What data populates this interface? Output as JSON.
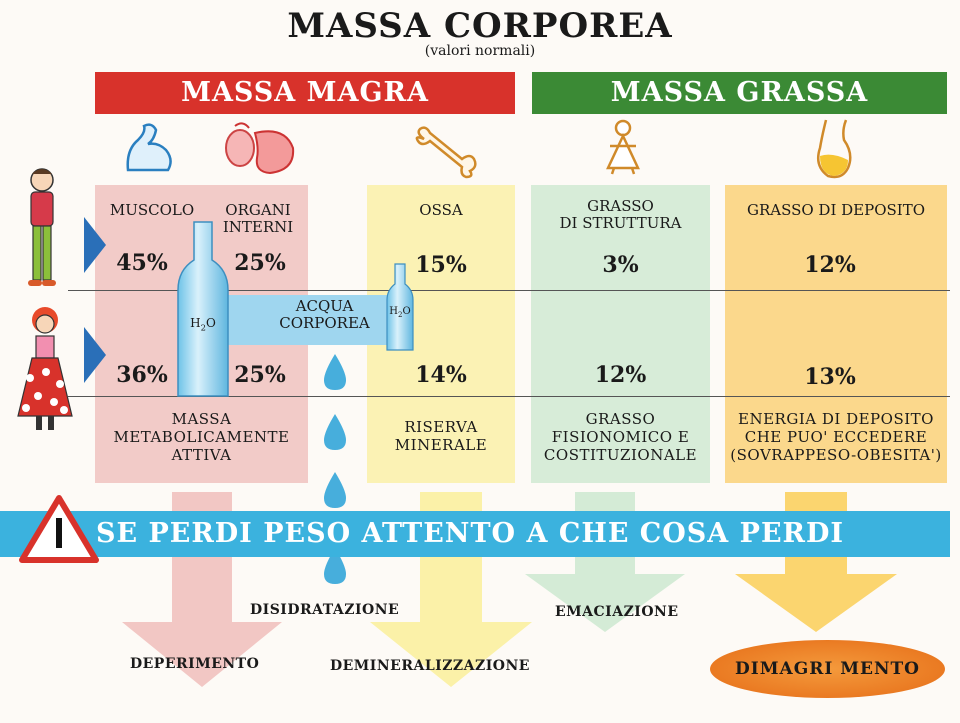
{
  "title": "MASSA CORPOREA",
  "subtitle": "(valori normali)",
  "headers": {
    "magra": "MASSA MAGRA",
    "grassa": "MASSA GRASSA"
  },
  "columns": {
    "muscolo": {
      "label": "MUSCOLO",
      "male": "45%",
      "female": "36%"
    },
    "organi": {
      "label_line1": "ORGANI",
      "label_line2": "INTERNI",
      "male": "25%",
      "female": "25%"
    },
    "ossa": {
      "label": "OSSA",
      "male": "15%",
      "female": "14%"
    },
    "grasso_struttura": {
      "label_line1": "GRASSO",
      "label_line2": "DI STRUTTURA",
      "male": "3%",
      "female": "12%"
    },
    "grasso_deposito": {
      "label": "GRASSO DI DEPOSITO",
      "male": "12%",
      "female": "13%"
    }
  },
  "water": {
    "big_bottle": "H2O",
    "small_bottle": "H2O",
    "label_line1": "ACQUA",
    "label_line2": "CORPOREA"
  },
  "descriptions": {
    "magra": [
      "MASSA",
      "METABOLICAMENTE",
      "ATTIVA"
    ],
    "ossa": [
      "RISERVA",
      "MINERALE"
    ],
    "strutt": [
      "GRASSO",
      "FISIONOMICO E",
      "COSTITUZIONALE"
    ],
    "depos": [
      "ENERGIA DI DEPOSITO",
      "CHE PUO' ECCEDERE",
      "(SOVRAPPESO-OBESITA')"
    ]
  },
  "banner": "SE PERDI PESO ATTENTO A CHE COSA PERDI",
  "effects": {
    "deperimento": "DEPERIMENTO",
    "disidratazione": "DISIDRATAZIONE",
    "demineralizzazione": "DEMINERALIZZAZIONE",
    "emaciazione": "EMACIAZIONE",
    "dimagrimento": "DIMAGRI MENTO"
  },
  "colors": {
    "magra_header": "#d8322b",
    "grassa_header": "#3b8a35",
    "banner": "#3bb2de",
    "water": "#3bb2de"
  },
  "icons": [
    "muscle-arm-icon",
    "organs-icon",
    "bone-icon",
    "body-fat-icon",
    "fat-deposit-icon",
    "male-figure-icon",
    "female-figure-icon",
    "warning-triangle-icon",
    "water-drop-icon",
    "water-bottle-icon"
  ]
}
